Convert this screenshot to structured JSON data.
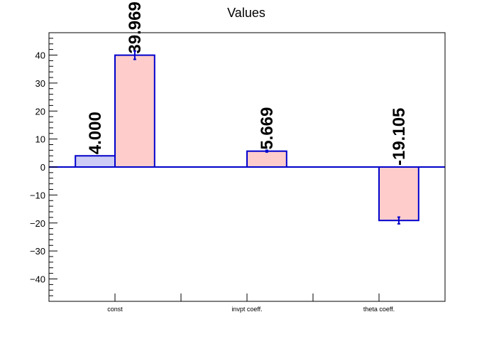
{
  "chart_data": {
    "type": "bar",
    "title": "Values",
    "xlabel": "",
    "ylabel": "",
    "ylim": [
      -48,
      48
    ],
    "yticks": [
      -40,
      -30,
      -20,
      -10,
      0,
      10,
      20,
      30,
      40
    ],
    "categories": [
      "const",
      "invpt coeff.",
      "theta coeff."
    ],
    "series": [
      {
        "values": [
          4.0,
          null,
          null
        ],
        "errors": [
          0,
          null,
          null
        ],
        "labels": [
          "4.000",
          "",
          ""
        ],
        "fill": "#ccccf5",
        "stroke": "#0000cc"
      },
      {
        "values": [
          39.969,
          5.669,
          -19.105
        ],
        "errors": [
          1.5,
          0.3,
          1.2
        ],
        "labels": [
          "39.969",
          "5.669",
          "-19.105"
        ],
        "fill": "#ffcccc",
        "stroke": "#0000cc"
      }
    ],
    "grid": false,
    "colors": {
      "axis": "#000000",
      "bar_stroke": "#0000cc",
      "zero_line": "#0000cc"
    }
  }
}
